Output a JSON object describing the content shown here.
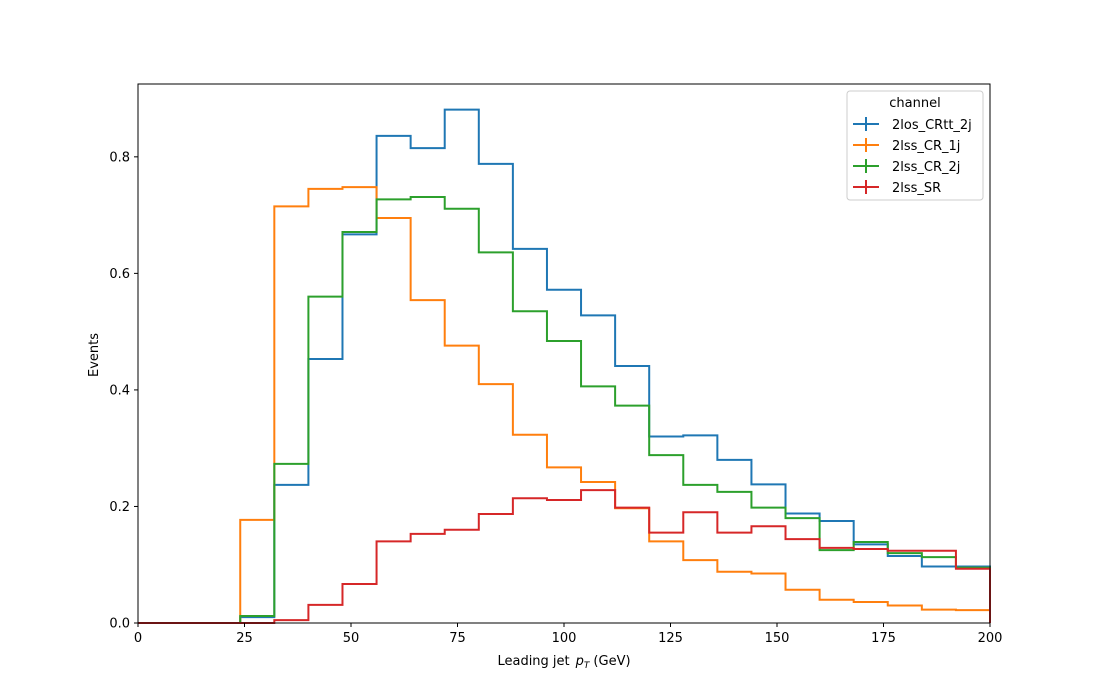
{
  "chart_data": {
    "type": "step",
    "xlabel": "Leading jet",
    "xlabel_math": "p",
    "xlabel_math_sub": "T",
    "xlabel_unit": "(GeV)",
    "ylabel": "Events",
    "xlim": [
      0,
      200
    ],
    "ylim": [
      0,
      0.925
    ],
    "xticks": [
      0,
      25,
      50,
      75,
      100,
      125,
      150,
      175,
      200
    ],
    "yticks": [
      0.0,
      0.2,
      0.4,
      0.6,
      0.8
    ],
    "grid": false,
    "bin_edges": [
      0,
      8,
      16,
      24,
      32,
      40,
      48,
      56,
      64,
      72,
      80,
      88,
      96,
      104,
      112,
      120,
      128,
      136,
      144,
      152,
      160,
      168,
      176,
      184,
      192,
      200
    ],
    "legend": {
      "title": "channel",
      "placement": "top-right"
    },
    "series": [
      {
        "name": "2los_CRtt_2j",
        "color": "#1f77b4",
        "values": [
          0,
          0,
          0,
          0.01,
          0.237,
          0.453,
          0.667,
          0.836,
          0.815,
          0.881,
          0.788,
          0.642,
          0.572,
          0.528,
          0.441,
          0.32,
          0.322,
          0.28,
          0.238,
          0.188,
          0.175,
          0.135,
          0.115,
          0.097,
          0.097
        ]
      },
      {
        "name": "2lss_CR_1j",
        "color": "#ff7f0e",
        "values": [
          0,
          0,
          0,
          0.177,
          0.715,
          0.745,
          0.748,
          0.695,
          0.554,
          0.476,
          0.41,
          0.323,
          0.267,
          0.242,
          0.197,
          0.14,
          0.108,
          0.088,
          0.085,
          0.057,
          0.04,
          0.036,
          0.03,
          0.023,
          0.022
        ]
      },
      {
        "name": "2lss_CR_2j",
        "color": "#2ca02c",
        "values": [
          0,
          0,
          0,
          0.012,
          0.273,
          0.56,
          0.671,
          0.727,
          0.731,
          0.711,
          0.636,
          0.535,
          0.484,
          0.406,
          0.373,
          0.288,
          0.237,
          0.225,
          0.198,
          0.18,
          0.125,
          0.139,
          0.12,
          0.113,
          0.095
        ]
      },
      {
        "name": "2lss_SR",
        "color": "#d62728",
        "values": [
          0,
          0,
          0,
          0,
          0.005,
          0.031,
          0.067,
          0.14,
          0.153,
          0.16,
          0.187,
          0.214,
          0.211,
          0.228,
          0.198,
          0.155,
          0.19,
          0.155,
          0.166,
          0.144,
          0.129,
          0.127,
          0.124,
          0.124,
          0.093
        ]
      }
    ]
  }
}
